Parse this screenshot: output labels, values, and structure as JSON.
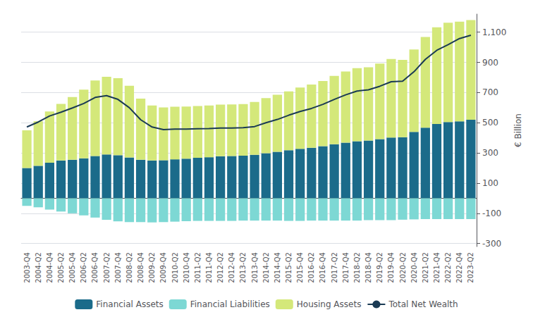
{
  "chart_data": {
    "type": "bar",
    "categories": [
      "2003-Q4",
      "2004-Q2",
      "2004-Q4",
      "2005-Q2",
      "2005-Q4",
      "2006-Q2",
      "2006-Q4",
      "2007-Q2",
      "2007-Q4",
      "2008-Q2",
      "2008-Q4",
      "2009-Q2",
      "2009-Q4",
      "2010-Q2",
      "2010-Q4",
      "2011-Q2",
      "2011-Q4",
      "2012-Q2",
      "2012-Q4",
      "2013-Q2",
      "2013-Q4",
      "2014-Q2",
      "2014-Q4",
      "2015-Q2",
      "2015-Q4",
      "2016-Q2",
      "2016-Q4",
      "2017-Q2",
      "2017-Q4",
      "2018-Q2",
      "2018-Q4",
      "2019-Q2",
      "2019-Q4",
      "2020-Q2",
      "2020-Q4",
      "2021-Q2",
      "2021-Q4",
      "2022-Q2",
      "2022-Q4",
      "2023-Q2"
    ],
    "series": [
      {
        "name": "Financial Assets",
        "color": "#1b6b8a",
        "values": [
          200,
          215,
          235,
          250,
          255,
          265,
          280,
          290,
          285,
          270,
          255,
          250,
          252,
          258,
          262,
          268,
          272,
          278,
          280,
          282,
          288,
          298,
          308,
          318,
          328,
          335,
          345,
          358,
          368,
          378,
          382,
          392,
          402,
          405,
          440,
          468,
          492,
          505,
          510,
          520
        ]
      },
      {
        "name": "Financial Liabilities",
        "color": "#7dd8d4",
        "values": [
          -50,
          -60,
          -75,
          -88,
          -100,
          -113,
          -128,
          -143,
          -153,
          -158,
          -158,
          -160,
          -158,
          -155,
          -152,
          -150,
          -150,
          -150,
          -150,
          -148,
          -148,
          -148,
          -148,
          -150,
          -150,
          -148,
          -148,
          -148,
          -148,
          -148,
          -145,
          -145,
          -145,
          -142,
          -140,
          -138,
          -138,
          -138,
          -138,
          -138
        ]
      },
      {
        "name": "Housing Assets",
        "color": "#d4e87a",
        "values": [
          250,
          295,
          340,
          375,
          415,
          455,
          500,
          515,
          510,
          475,
          405,
          365,
          350,
          348,
          345,
          343,
          343,
          342,
          342,
          342,
          350,
          365,
          378,
          390,
          405,
          418,
          432,
          452,
          472,
          484,
          486,
          500,
          520,
          512,
          545,
          600,
          640,
          658,
          660,
          660
        ]
      },
      {
        "name": "Total Net Wealth",
        "type": "line",
        "color": "#1a3a54",
        "values": [
          472,
          505,
          545,
          570,
          598,
          628,
          668,
          680,
          655,
          600,
          520,
          472,
          455,
          458,
          458,
          460,
          462,
          465,
          465,
          467,
          475,
          500,
          522,
          550,
          575,
          595,
          622,
          655,
          685,
          710,
          718,
          742,
          772,
          775,
          838,
          920,
          980,
          1018,
          1058,
          1080
        ]
      }
    ],
    "ylabel": "€ Billion",
    "ylim": [
      -320,
      1220
    ],
    "yticks": [
      -300,
      -100,
      100,
      300,
      500,
      700,
      900,
      {
        "value": 1100,
        "label": "1,100"
      }
    ],
    "stacked": true,
    "grid": true,
    "legend": "bottom"
  }
}
